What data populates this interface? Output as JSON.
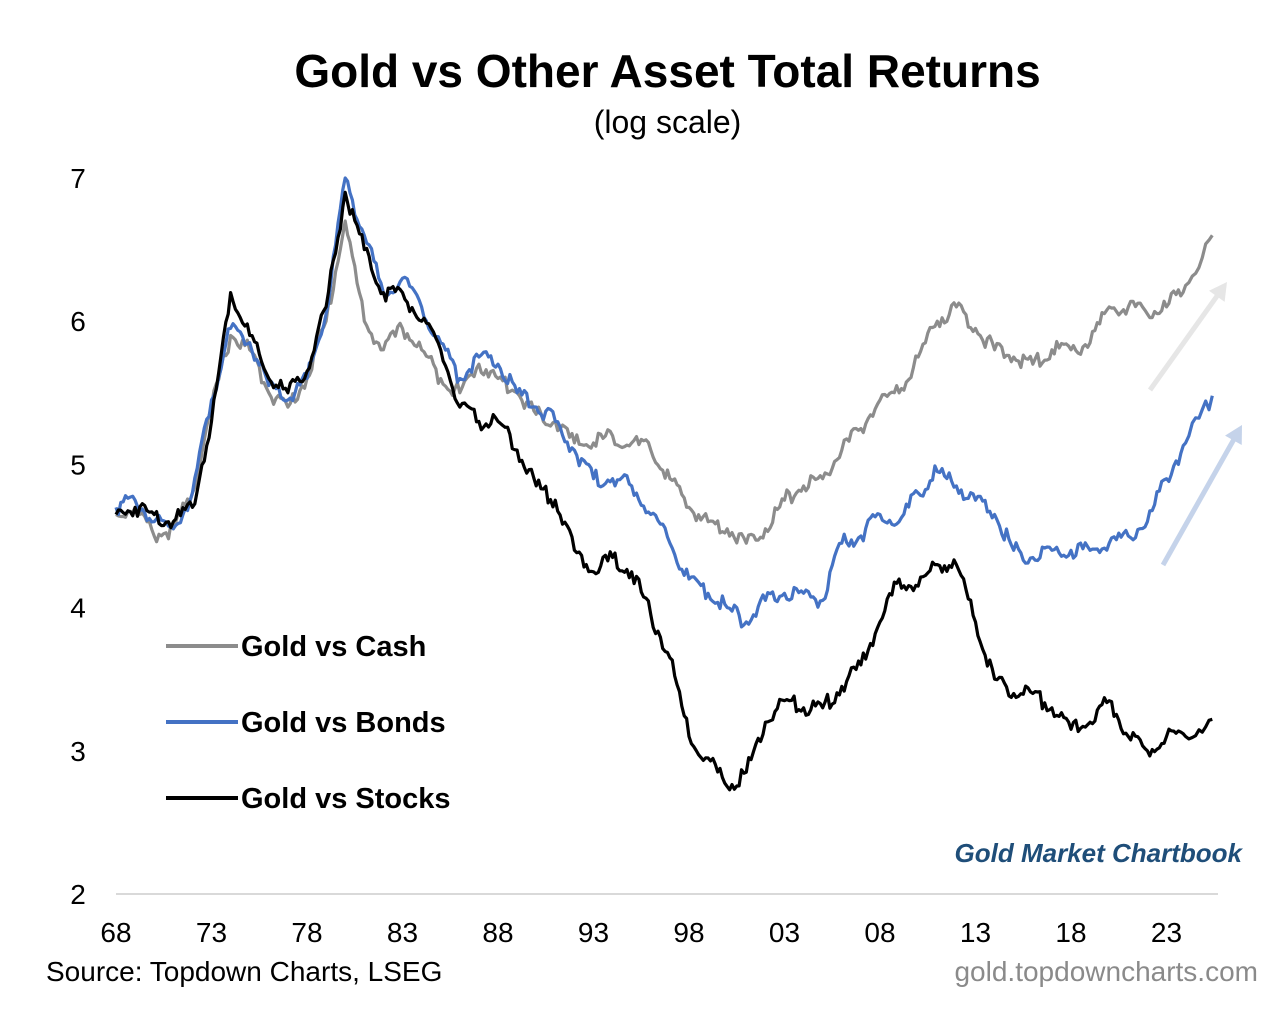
{
  "chart_data": {
    "type": "line",
    "title": "Gold vs Other Asset Total Returns",
    "subtitle": "(log scale)",
    "xlabel": "",
    "ylabel": "",
    "ylim": [
      2,
      7
    ],
    "xlim": [
      1968,
      2026
    ],
    "yticks": [
      "2",
      "3",
      "4",
      "5",
      "6",
      "7"
    ],
    "xticks": [
      "68",
      "73",
      "78",
      "83",
      "88",
      "93",
      "98",
      "03",
      "08",
      "13",
      "18",
      "23"
    ],
    "legend_placement": "bottom-left",
    "x": [
      1968,
      1969,
      1970,
      1971,
      1972,
      1973,
      1974,
      1975,
      1976,
      1977,
      1978,
      1979,
      1980,
      1981,
      1982,
      1983,
      1984,
      1985,
      1986,
      1987,
      1988,
      1989,
      1990,
      1991,
      1992,
      1993,
      1994,
      1995,
      1996,
      1997,
      1998,
      1999,
      2000,
      2001,
      2002,
      2003,
      2004,
      2005,
      2006,
      2007,
      2008,
      2009,
      2010,
      2011,
      2012,
      2013,
      2014,
      2015,
      2016,
      2017,
      2018,
      2019,
      2020,
      2021,
      2022,
      2023,
      2024,
      2025.4
    ],
    "series": [
      {
        "name": "Gold vs Cash",
        "color": "#8c8c8c",
        "values": [
          4.65,
          4.7,
          4.5,
          4.55,
          4.8,
          5.4,
          5.9,
          5.8,
          5.5,
          5.4,
          5.6,
          6.0,
          6.7,
          6.0,
          5.8,
          5.95,
          5.8,
          5.6,
          5.5,
          5.7,
          5.6,
          5.5,
          5.35,
          5.3,
          5.15,
          5.15,
          5.2,
          5.15,
          5.1,
          4.9,
          4.7,
          4.6,
          4.55,
          4.45,
          4.55,
          4.75,
          4.85,
          4.9,
          5.1,
          5.25,
          5.45,
          5.5,
          5.75,
          6.0,
          6.1,
          5.95,
          5.8,
          5.75,
          5.7,
          5.8,
          5.8,
          5.85,
          6.1,
          6.1,
          6.05,
          6.1,
          6.25,
          6.6
        ]
      },
      {
        "name": "Gold vs Bonds",
        "color": "#4472c4",
        "values": [
          4.7,
          4.75,
          4.6,
          4.55,
          4.8,
          5.45,
          5.95,
          5.85,
          5.55,
          5.45,
          5.6,
          6.05,
          7.0,
          6.6,
          6.2,
          6.3,
          6.1,
          5.85,
          5.6,
          5.75,
          5.7,
          5.5,
          5.4,
          5.3,
          5.1,
          4.9,
          4.9,
          4.85,
          4.65,
          4.45,
          4.2,
          4.1,
          4.0,
          3.9,
          4.05,
          4.1,
          4.1,
          4.05,
          4.45,
          4.5,
          4.65,
          4.6,
          4.8,
          4.95,
          4.85,
          4.75,
          4.65,
          4.4,
          4.35,
          4.4,
          4.4,
          4.4,
          4.45,
          4.5,
          4.6,
          4.9,
          5.15,
          5.48
        ]
      },
      {
        "name": "Gold vs Stocks",
        "color": "#000000",
        "values": [
          4.65,
          4.7,
          4.65,
          4.6,
          4.7,
          5.3,
          6.2,
          5.9,
          5.6,
          5.5,
          5.65,
          6.1,
          6.9,
          6.5,
          6.2,
          6.2,
          6.0,
          5.8,
          5.4,
          5.3,
          5.3,
          5.1,
          4.85,
          4.75,
          4.4,
          4.25,
          4.35,
          4.25,
          3.95,
          3.65,
          3.1,
          2.95,
          2.75,
          2.85,
          3.2,
          3.35,
          3.3,
          3.3,
          3.45,
          3.6,
          3.9,
          4.2,
          4.15,
          4.3,
          4.3,
          3.9,
          3.5,
          3.4,
          3.4,
          3.3,
          3.15,
          3.2,
          3.35,
          3.1,
          3.0,
          3.1,
          3.1,
          3.22
        ]
      }
    ],
    "annotations": {
      "brand": "Gold Market Chartbook"
    },
    "arrow_colors": [
      "#e6e6e6",
      "#c5d3ea"
    ]
  },
  "source": "Source: Topdown Charts, LSEG",
  "site": "gold.topdowncharts.com"
}
